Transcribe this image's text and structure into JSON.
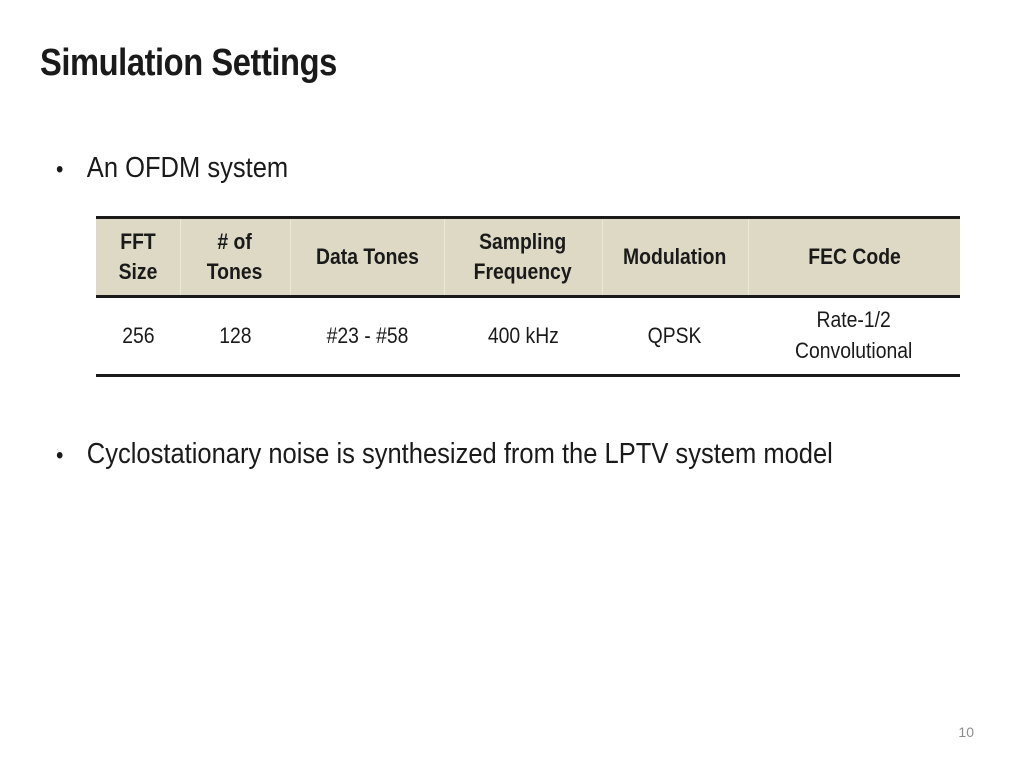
{
  "slide": {
    "title": "Simulation Settings",
    "bullets": [
      "An OFDM system",
      "Cyclostationary noise is synthesized from the LPTV system model"
    ],
    "bullet_glyph": "•",
    "page_number": "10"
  },
  "table": {
    "headers": [
      "FFT\nSize",
      "# of\nTones",
      "Data Tones",
      "Sampling\nFrequency",
      "Modulation",
      "FEC Code"
    ],
    "rows": [
      [
        "256",
        "128",
        "#23 - #58",
        "400 kHz",
        "QPSK",
        "Rate-1/2\nConvolutional"
      ]
    ],
    "header_background": "#ddd9c4"
  }
}
